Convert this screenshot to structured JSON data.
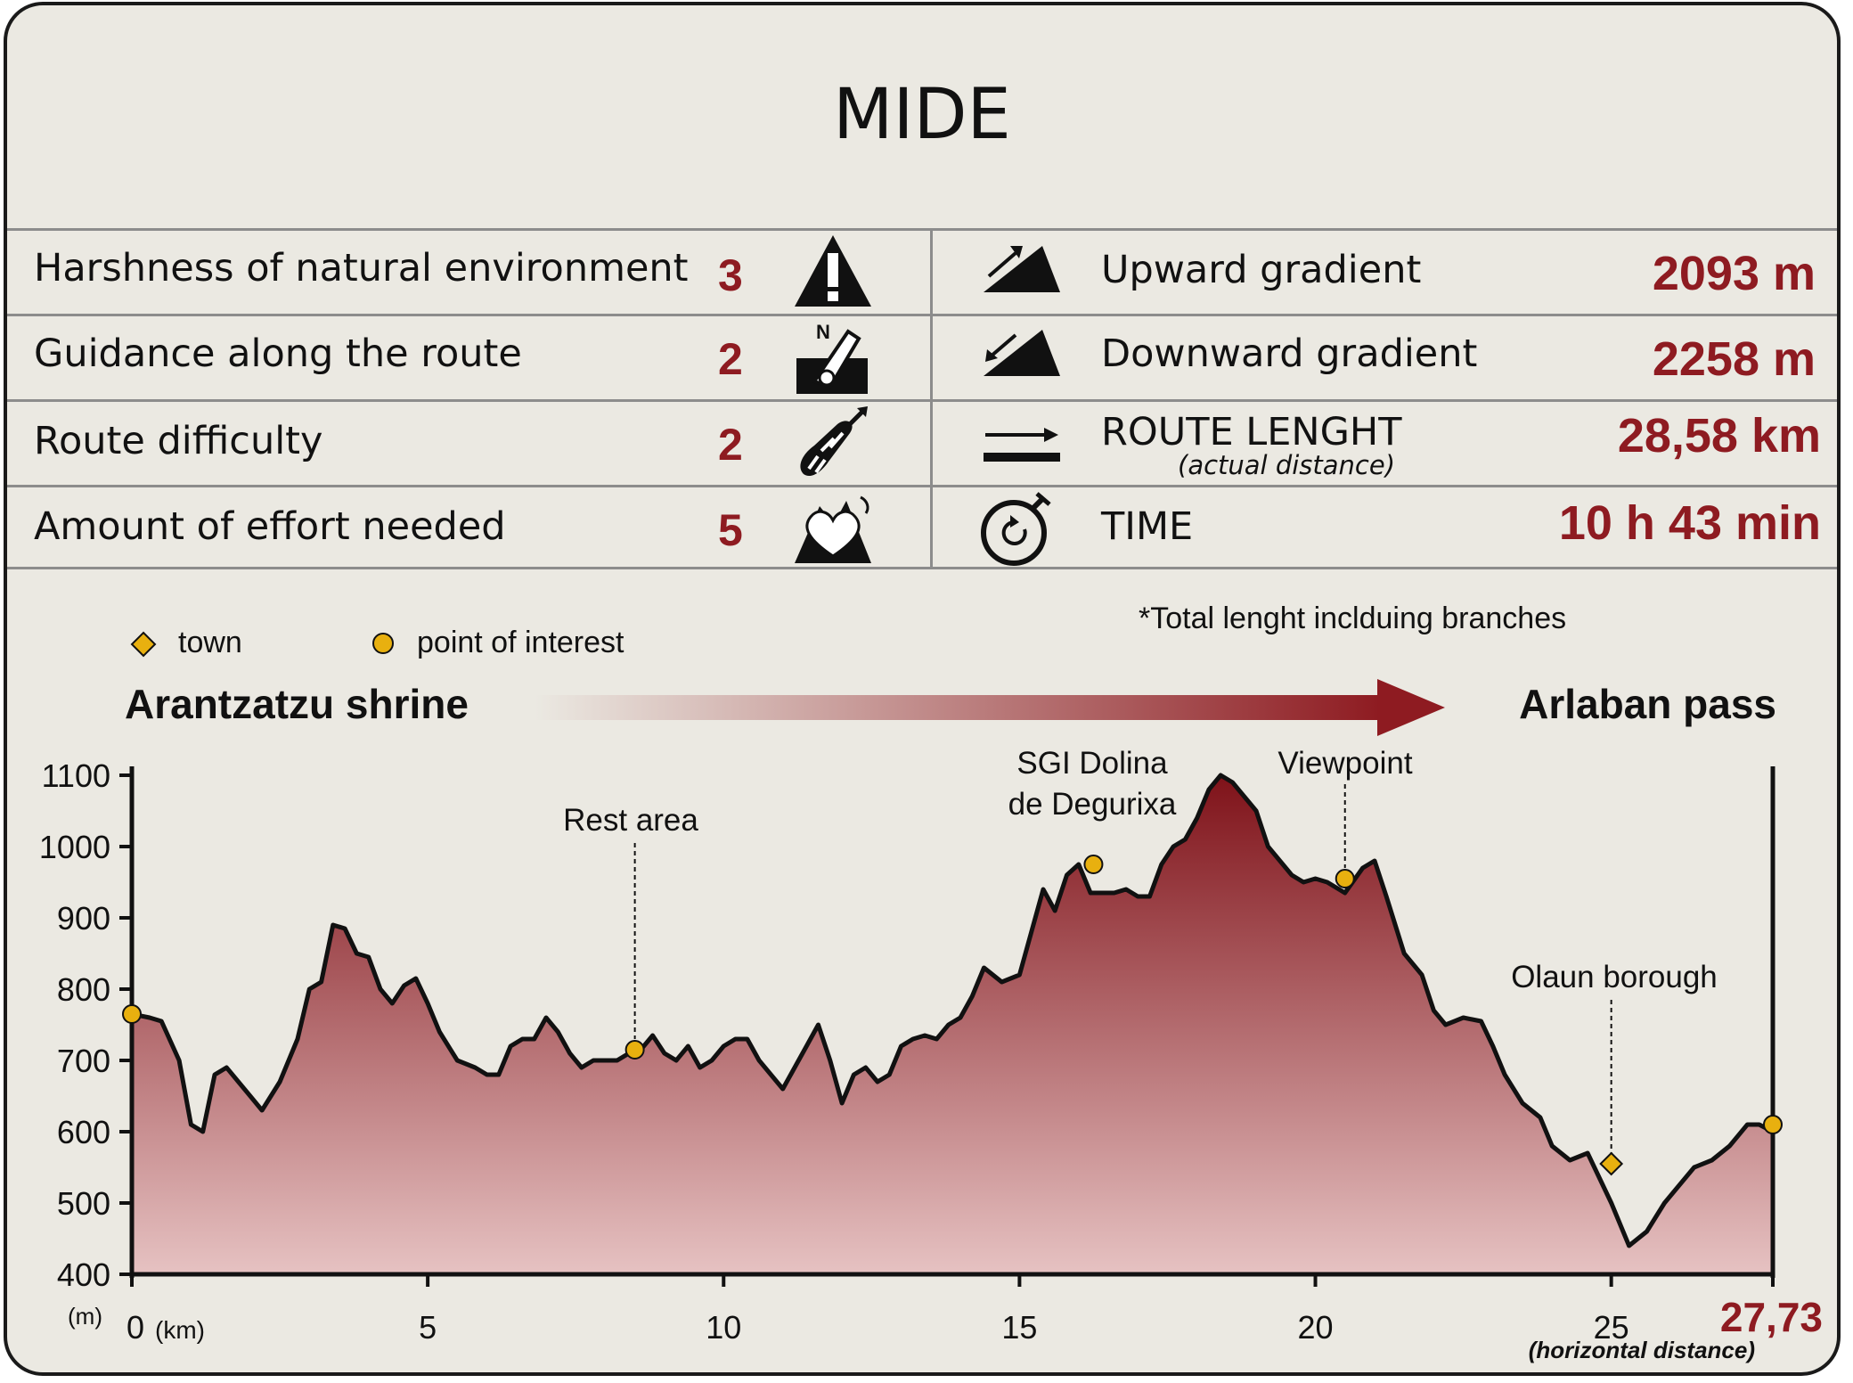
{
  "title": "MIDE",
  "mide_rows": [
    {
      "label": "Harshness of natural environment",
      "value": "3",
      "icon": "warning-icon"
    },
    {
      "label": "Guidance along the route",
      "value": "2",
      "icon": "signpost-icon"
    },
    {
      "label": "Route difficulty",
      "value": "2",
      "icon": "footprint-icon"
    },
    {
      "label": "Amount of effort needed",
      "value": "5",
      "icon": "heart-mountain-icon"
    }
  ],
  "stats": [
    {
      "label": "Upward gradient",
      "value": "2093 m",
      "icon": "uphill-icon"
    },
    {
      "label": "Downward gradient",
      "value": "2258 m",
      "icon": "downhill-icon"
    },
    {
      "label": "ROUTE LENGHT",
      "sublabel": "(actual distance)",
      "value": "28,58 km",
      "icon": "distance-icon"
    },
    {
      "label": "TIME",
      "value": "10 h 43 min",
      "icon": "stopwatch-icon"
    }
  ],
  "note": "*Total lenght inclduing branches",
  "legend": [
    {
      "label": "town",
      "icon": "diamond-icon"
    },
    {
      "label": "point of interest",
      "icon": "circle-icon"
    }
  ],
  "start_label": "Arantzatzu shrine",
  "end_label": "Arlaban pass",
  "colors": {
    "accent": "#8e1b21",
    "marker": "#e8b00f",
    "panel": "#ebe9e2"
  },
  "chart_data": {
    "type": "area",
    "ylabel": "(m)",
    "xlabel": "(km)",
    "xlabel_end": "(horizontal distance)",
    "x_end_label": "27,73",
    "xlim": [
      0,
      27.73
    ],
    "ylim": [
      400,
      1100
    ],
    "xticks": [
      0,
      5,
      10,
      15,
      20,
      25
    ],
    "yticks": [
      400,
      500,
      600,
      700,
      800,
      900,
      1000,
      1100
    ],
    "x": [
      0,
      0.3,
      0.5,
      0.8,
      1.0,
      1.2,
      1.4,
      1.6,
      1.8,
      2.0,
      2.2,
      2.5,
      2.8,
      3.0,
      3.2,
      3.4,
      3.6,
      3.8,
      4.0,
      4.2,
      4.4,
      4.6,
      4.8,
      5.0,
      5.2,
      5.5,
      5.8,
      6.0,
      6.2,
      6.4,
      6.6,
      6.8,
      7.0,
      7.2,
      7.4,
      7.6,
      7.8,
      8.0,
      8.2,
      8.4,
      8.6,
      8.8,
      9.0,
      9.2,
      9.4,
      9.6,
      9.8,
      10.0,
      10.2,
      10.4,
      10.6,
      10.8,
      11.0,
      11.2,
      11.4,
      11.6,
      11.8,
      12.0,
      12.2,
      12.4,
      12.6,
      12.8,
      13.0,
      13.2,
      13.4,
      13.6,
      13.8,
      14.0,
      14.2,
      14.4,
      14.7,
      15.0,
      15.2,
      15.4,
      15.6,
      15.8,
      16.0,
      16.2,
      16.4,
      16.6,
      16.8,
      17.0,
      17.2,
      17.4,
      17.6,
      17.8,
      18.0,
      18.2,
      18.4,
      18.6,
      18.8,
      19.0,
      19.2,
      19.4,
      19.6,
      19.8,
      20.0,
      20.2,
      20.5,
      20.8,
      21.0,
      21.2,
      21.5,
      21.8,
      22.0,
      22.2,
      22.5,
      22.8,
      23.0,
      23.2,
      23.5,
      23.8,
      24.0,
      24.3,
      24.6,
      25.0,
      25.3,
      25.6,
      25.9,
      26.1,
      26.4,
      26.7,
      27.0,
      27.3,
      27.5,
      27.73
    ],
    "y": [
      765,
      760,
      755,
      700,
      610,
      600,
      680,
      690,
      670,
      650,
      630,
      670,
      730,
      800,
      810,
      890,
      885,
      850,
      845,
      800,
      780,
      805,
      815,
      780,
      740,
      700,
      690,
      680,
      680,
      720,
      730,
      730,
      760,
      740,
      710,
      690,
      700,
      700,
      700,
      710,
      715,
      735,
      710,
      700,
      720,
      690,
      700,
      720,
      730,
      730,
      700,
      680,
      660,
      690,
      720,
      750,
      700,
      640,
      680,
      690,
      670,
      680,
      720,
      730,
      735,
      730,
      750,
      760,
      790,
      830,
      810,
      820,
      880,
      940,
      910,
      960,
      975,
      935,
      935,
      935,
      940,
      930,
      930,
      975,
      1000,
      1010,
      1040,
      1080,
      1100,
      1090,
      1070,
      1050,
      1000,
      980,
      960,
      950,
      955,
      950,
      935,
      970,
      980,
      930,
      850,
      820,
      770,
      750,
      760,
      755,
      720,
      680,
      640,
      620,
      580,
      560,
      570,
      500,
      440,
      460,
      500,
      520,
      550,
      560,
      580,
      610,
      610,
      600
    ],
    "towns": [
      {
        "x": 25.0,
        "y": 555,
        "label": "Olaun borough"
      }
    ],
    "points_of_interest": [
      {
        "x": 0,
        "y": 765,
        "label": ""
      },
      {
        "x": 8.5,
        "y": 715,
        "label": "Rest area"
      },
      {
        "x": 16.25,
        "y": 975,
        "label": "SGI Dolina de Degurixa"
      },
      {
        "x": 20.5,
        "y": 955,
        "label": "Viewpoint"
      },
      {
        "x": 27.73,
        "y": 610,
        "label": ""
      }
    ]
  }
}
